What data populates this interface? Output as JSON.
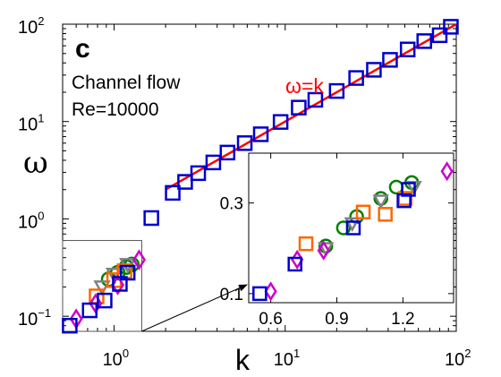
{
  "chart_data": [
    {
      "type": "scatter",
      "panel_letter": "c",
      "annotations": [
        "Channel flow",
        "Re=10000"
      ],
      "xlabel": "k",
      "ylabel": "ω",
      "x_scale": "log",
      "y_scale": "log",
      "xlim": [
        0.5,
        100
      ],
      "ylim": [
        0.07,
        100
      ],
      "x_ticks": [
        {
          "value": 1,
          "base": "10",
          "exp": "0"
        },
        {
          "value": 10,
          "base": "10",
          "exp": "1"
        },
        {
          "value": 100,
          "base": "10",
          "exp": "2"
        }
      ],
      "y_ticks": [
        {
          "value": 0.1,
          "base": "10",
          "exp": "−1"
        },
        {
          "value": 1,
          "base": "10",
          "exp": "0"
        },
        {
          "value": 10,
          "base": "10",
          "exp": "1"
        },
        {
          "value": 100,
          "base": "10",
          "exp": "2"
        }
      ],
      "grid": false,
      "series": [
        {
          "marker": "square",
          "color": "#0000cc",
          "points": [
            [
              0.55,
              0.08
            ],
            [
              0.72,
              0.115
            ],
            [
              0.88,
              0.145
            ],
            [
              1.08,
              0.215
            ],
            [
              1.2,
              0.28
            ],
            [
              1.65,
              1.02
            ],
            [
              2.2,
              1.85
            ],
            [
              2.6,
              2.4
            ],
            [
              3.1,
              2.95
            ],
            [
              3.8,
              3.8
            ],
            [
              4.6,
              4.8
            ],
            [
              5.8,
              6.0
            ],
            [
              7.2,
              7.4
            ],
            [
              9.4,
              9.9
            ],
            [
              12,
              13.9
            ],
            [
              15,
              16.7
            ],
            [
              20,
              20.6
            ],
            [
              26,
              28
            ],
            [
              33,
              34
            ],
            [
              41,
              43
            ],
            [
              52,
              55
            ],
            [
              65,
              67
            ],
            [
              80,
              77
            ],
            [
              93,
              94
            ]
          ]
        },
        {
          "marker": "diamond",
          "color": "#cc00cc",
          "points": [
            [
              0.6,
              0.094
            ],
            [
              0.78,
              0.135
            ],
            [
              1.05,
              0.21
            ],
            [
              1.4,
              0.38
            ]
          ]
        },
        {
          "marker": "square",
          "color": "#ff6600",
          "points": [
            [
              0.79,
              0.16
            ],
            [
              1.0,
              0.235
            ],
            [
              1.15,
              0.29
            ]
          ]
        },
        {
          "marker": "triangle-down",
          "color": "#808080",
          "points": [
            [
              0.85,
              0.2
            ],
            [
              1.0,
              0.27
            ],
            [
              1.2,
              0.34
            ]
          ]
        },
        {
          "marker": "circle",
          "color": "#008000",
          "points": [
            [
              0.93,
              0.24
            ],
            [
              1.05,
              0.28
            ],
            [
              1.18,
              0.32
            ],
            [
              1.27,
              0.34
            ]
          ]
        }
      ],
      "lines": [
        {
          "label": "ω=k",
          "color": "#ff0000",
          "x": [
            2.0,
            100
          ],
          "y": [
            2.0,
            100
          ]
        }
      ]
    },
    {
      "type": "scatter",
      "role": "inset",
      "x_scale": "linear",
      "y_scale": "linear",
      "xlim": [
        0.5,
        1.43
      ],
      "ylim": [
        0.08,
        0.41
      ],
      "x_tick_labels": [
        "0.6",
        "0.9",
        "1.2"
      ],
      "x_ticks": [
        0.6,
        0.9,
        1.2
      ],
      "y_tick_labels": [
        "0.1",
        "0.3"
      ],
      "y_ticks": [
        0.1,
        0.3
      ],
      "series": [
        {
          "marker": "square",
          "color": "#0000cc",
          "points": [
            [
              0.55,
              0.1
            ],
            [
              0.71,
              0.165
            ],
            [
              0.975,
              0.245
            ],
            [
              1.205,
              0.305
            ],
            [
              1.225,
              0.33
            ]
          ]
        },
        {
          "marker": "diamond",
          "color": "#cc00cc",
          "points": [
            [
              0.6,
              0.105
            ],
            [
              0.72,
              0.175
            ],
            [
              0.84,
              0.195
            ],
            [
              1.4,
              0.37
            ]
          ]
        },
        {
          "marker": "square",
          "color": "#ff6600",
          "points": [
            [
              0.76,
              0.21
            ],
            [
              1.02,
              0.28
            ],
            [
              1.12,
              0.275
            ],
            [
              1.21,
              0.31
            ]
          ]
        },
        {
          "marker": "triangle-down",
          "color": "#808080",
          "points": [
            [
              0.85,
              0.2
            ],
            [
              0.97,
              0.255
            ],
            [
              1.1,
              0.305
            ],
            [
              1.25,
              0.335
            ]
          ]
        },
        {
          "marker": "circle",
          "color": "#008000",
          "points": [
            [
              0.85,
              0.205
            ],
            [
              0.93,
              0.245
            ],
            [
              0.99,
              0.27
            ],
            [
              1.1,
              0.31
            ],
            [
              1.17,
              0.335
            ],
            [
              1.24,
              0.345
            ]
          ]
        }
      ]
    }
  ]
}
